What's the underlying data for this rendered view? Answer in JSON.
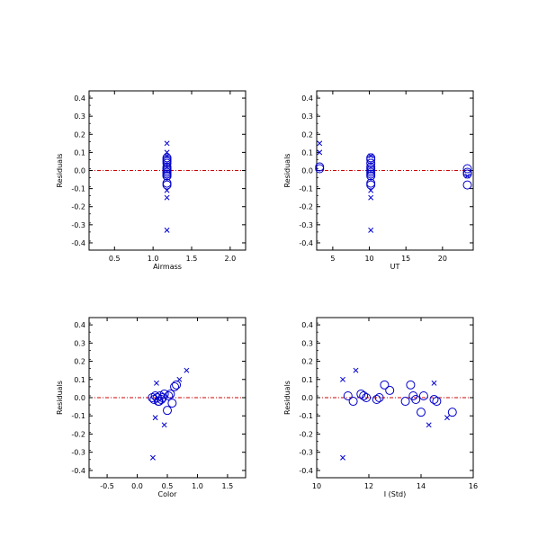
{
  "colors": {
    "axes": "#000000",
    "markers": "#0000cc",
    "zero_line": "#cc0000"
  },
  "chart_data": [
    {
      "type": "scatter",
      "xlabel": "Airmass",
      "ylabel": "Residuals",
      "xlim": [
        0.17,
        2.2
      ],
      "ylim": [
        -0.44,
        0.44
      ],
      "xticks": [
        0.5,
        1.0,
        1.5,
        2.0
      ],
      "xticklabels": [
        "0.5",
        "1.0",
        "1.5",
        "2.0"
      ],
      "yticks": [
        -0.4,
        -0.3,
        -0.2,
        -0.1,
        0.0,
        0.1,
        0.2,
        0.3,
        0.4
      ],
      "yticklabels": [
        "-0.4",
        "-0.3",
        "-0.2",
        "-0.1",
        "0.0",
        "0.1",
        "0.2",
        "0.3",
        "0.4"
      ],
      "reference_line": 0,
      "grid": false,
      "series": [
        {
          "marker": "circle",
          "x": [
            1.18,
            1.18,
            1.18,
            1.18,
            1.18,
            1.18,
            1.18,
            1.18,
            1.18,
            1.18,
            1.18,
            1.18,
            1.18,
            1.18,
            1.18,
            1.18
          ],
          "y": [
            0.07,
            0.06,
            0.05,
            0.04,
            0.02,
            0.01,
            0.01,
            0.0,
            -0.01,
            -0.01,
            -0.02,
            -0.02,
            -0.03,
            -0.03,
            -0.07,
            -0.08
          ]
        },
        {
          "marker": "x",
          "x": [
            1.18,
            1.18,
            1.18,
            1.18,
            1.18,
            1.18
          ],
          "y": [
            0.15,
            0.1,
            0.08,
            -0.11,
            -0.15,
            -0.33
          ]
        }
      ]
    },
    {
      "type": "scatter",
      "xlabel": "UT",
      "ylabel": "Residuals",
      "xlim": [
        2.8,
        24.2
      ],
      "ylim": [
        -0.44,
        0.44
      ],
      "xticks": [
        5,
        10,
        15,
        20
      ],
      "xticklabels": [
        "5",
        "10",
        "15",
        "20"
      ],
      "yticks": [
        -0.4,
        -0.3,
        -0.2,
        -0.1,
        0.0,
        0.1,
        0.2,
        0.3,
        0.4
      ],
      "yticklabels": [
        "-0.4",
        "-0.3",
        "-0.2",
        "-0.1",
        "0.0",
        "0.1",
        "0.2",
        "0.3",
        "0.4"
      ],
      "reference_line": 0,
      "grid": false,
      "series": [
        {
          "marker": "circle",
          "x": [
            3.2,
            3.2,
            10.2,
            10.2,
            10.2,
            10.2,
            10.2,
            10.2,
            10.2,
            10.2,
            10.2,
            10.2,
            10.2,
            23.4,
            23.4,
            23.4,
            23.4
          ],
          "y": [
            0.02,
            0.01,
            0.07,
            0.06,
            0.04,
            0.02,
            0.01,
            0.0,
            -0.01,
            -0.02,
            -0.03,
            -0.07,
            -0.08,
            0.01,
            -0.01,
            -0.02,
            -0.08
          ]
        },
        {
          "marker": "x",
          "x": [
            3.2,
            3.2,
            10.2,
            10.2,
            10.2,
            10.2,
            23.4
          ],
          "y": [
            0.15,
            0.1,
            0.08,
            -0.11,
            -0.15,
            -0.33,
            -0.03
          ]
        }
      ]
    },
    {
      "type": "scatter",
      "xlabel": "Color",
      "ylabel": "Residuals",
      "xlim": [
        -0.8,
        1.8
      ],
      "ylim": [
        -0.44,
        0.44
      ],
      "xticks": [
        -0.5,
        0.0,
        0.5,
        1.0,
        1.5
      ],
      "xticklabels": [
        "-0.5",
        "0.0",
        "0.5",
        "1.0",
        "1.5"
      ],
      "yticks": [
        -0.4,
        -0.3,
        -0.2,
        -0.1,
        0.0,
        0.1,
        0.2,
        0.3,
        0.4
      ],
      "yticklabels": [
        "-0.4",
        "-0.3",
        "-0.2",
        "-0.1",
        "0.0",
        "0.1",
        "0.2",
        "0.3",
        "0.4"
      ],
      "reference_line": 0,
      "grid": false,
      "series": [
        {
          "marker": "circle",
          "x": [
            0.25,
            0.28,
            0.3,
            0.33,
            0.35,
            0.38,
            0.4,
            0.42,
            0.45,
            0.5,
            0.52,
            0.55,
            0.58,
            0.62,
            0.65,
            0.36
          ],
          "y": [
            0.0,
            -0.01,
            0.01,
            0.0,
            -0.02,
            0.01,
            -0.01,
            0.0,
            0.02,
            -0.07,
            0.01,
            0.02,
            -0.03,
            0.06,
            0.07,
            -0.02
          ]
        },
        {
          "marker": "x",
          "x": [
            0.82,
            0.7,
            0.32,
            0.3,
            0.45,
            0.26
          ],
          "y": [
            0.15,
            0.1,
            0.08,
            -0.11,
            -0.15,
            -0.33
          ]
        }
      ]
    },
    {
      "type": "scatter",
      "xlabel": "I (Std)",
      "ylabel": "Residuals",
      "xlim": [
        10,
        16
      ],
      "ylim": [
        -0.44,
        0.44
      ],
      "xticks": [
        10,
        12,
        14,
        16
      ],
      "xticklabels": [
        "10",
        "12",
        "14",
        "16"
      ],
      "yticks": [
        -0.4,
        -0.3,
        -0.2,
        -0.1,
        0.0,
        0.1,
        0.2,
        0.3,
        0.4
      ],
      "yticklabels": [
        "-0.4",
        "-0.3",
        "-0.2",
        "-0.1",
        "0.0",
        "0.1",
        "0.2",
        "0.3",
        "0.4"
      ],
      "reference_line": 0,
      "grid": false,
      "series": [
        {
          "marker": "circle",
          "x": [
            11.2,
            11.4,
            11.7,
            11.8,
            11.9,
            12.3,
            12.4,
            12.6,
            12.8,
            13.4,
            13.6,
            13.7,
            13.8,
            14.0,
            14.1,
            14.5,
            14.6,
            15.2
          ],
          "y": [
            0.01,
            -0.02,
            0.02,
            0.01,
            0.0,
            -0.01,
            0.0,
            0.07,
            0.04,
            -0.02,
            0.07,
            0.01,
            -0.01,
            -0.08,
            0.01,
            -0.01,
            -0.02,
            -0.08
          ]
        },
        {
          "marker": "x",
          "x": [
            11.5,
            11.0,
            14.5,
            15.0,
            14.3,
            11.0
          ],
          "y": [
            0.15,
            0.1,
            0.08,
            -0.11,
            -0.15,
            -0.33
          ]
        }
      ]
    }
  ]
}
